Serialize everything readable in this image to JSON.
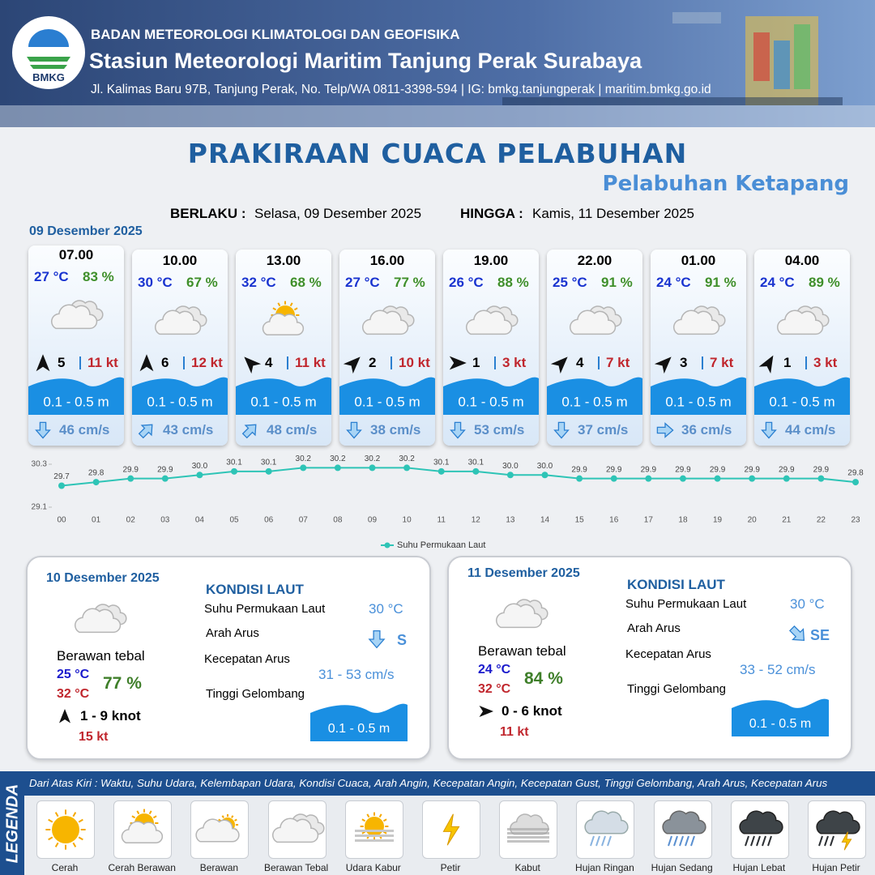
{
  "header": {
    "logo": "BMKG",
    "org": "BADAN METEOROLOGI KLIMATOLOGI DAN GEOFISIKA",
    "station": "Stasiun Meteorologi Maritim Tanjung Perak Surabaya",
    "address": "Jl. Kalimas Baru 97B, Tanjung Perak, No. Telp/WA 0811-3398-594 | IG: bmkg.tanjungperak | maritim.bmkg.go.id"
  },
  "title": "PRAKIRAAN CUACA PELABUHAN",
  "subtitle": "Pelabuhan Ketapang",
  "validity": {
    "from_label": "BERLAKU :",
    "from": "Selasa, 09 Desember 2025",
    "to_label": "HINGGA :",
    "to": "Kamis, 11 Desember 2025"
  },
  "today": {
    "date": "09 Desember 2025",
    "slots": [
      {
        "time": "07.00",
        "temp": "27 °C",
        "humidity": "83 %",
        "icon": "clouds",
        "wind_rotation": 0,
        "wind": "5",
        "gust": "11 kt",
        "wave": "0.1 - 0.5 m",
        "current_rotation": 180,
        "current": "46 cm/s"
      },
      {
        "time": "10.00",
        "temp": "30 °C",
        "humidity": "67 %",
        "icon": "clouds",
        "wind_rotation": 0,
        "wind": "6",
        "gust": "12 kt",
        "wave": "0.1 - 0.5 m",
        "current_rotation": 45,
        "current": "43 cm/s"
      },
      {
        "time": "13.00",
        "temp": "32 °C",
        "humidity": "68 %",
        "icon": "sun-cloud",
        "wind_rotation": -45,
        "wind": "4",
        "gust": "11 kt",
        "wave": "0.1 - 0.5 m",
        "current_rotation": 45,
        "current": "48 cm/s"
      },
      {
        "time": "16.00",
        "temp": "27 °C",
        "humidity": "77 %",
        "icon": "clouds",
        "wind_rotation": 45,
        "wind": "2",
        "gust": "10 kt",
        "wave": "0.1 - 0.5 m",
        "current_rotation": 180,
        "current": "38 cm/s"
      },
      {
        "time": "19.00",
        "temp": "26 °C",
        "humidity": "88 %",
        "icon": "clouds",
        "wind_rotation": 90,
        "wind": "1",
        "gust": "3 kt",
        "wave": "0.1 - 0.5 m",
        "current_rotation": 180,
        "current": "53 cm/s"
      },
      {
        "time": "22.00",
        "temp": "25 °C",
        "humidity": "91 %",
        "icon": "clouds",
        "wind_rotation": 45,
        "wind": "4",
        "gust": "7 kt",
        "wave": "0.1 - 0.5 m",
        "current_rotation": 180,
        "current": "37 cm/s"
      },
      {
        "time": "01.00",
        "temp": "24 °C",
        "humidity": "91 %",
        "icon": "clouds",
        "wind_rotation": 45,
        "wind": "3",
        "gust": "7 kt",
        "wave": "0.1 - 0.5 m",
        "current_rotation": 90,
        "current": "36 cm/s"
      },
      {
        "time": "04.00",
        "temp": "24 °C",
        "humidity": "89 %",
        "icon": "clouds",
        "wind_rotation": 30,
        "wind": "1",
        "gust": "3 kt",
        "wave": "0.1 - 0.5 m",
        "current_rotation": 180,
        "current": "44 cm/s"
      }
    ]
  },
  "chart_data": {
    "type": "line",
    "categories": [
      "00",
      "01",
      "02",
      "03",
      "04",
      "05",
      "06",
      "07",
      "08",
      "09",
      "10",
      "11",
      "12",
      "13",
      "14",
      "15",
      "16",
      "17",
      "18",
      "19",
      "20",
      "21",
      "22",
      "23"
    ],
    "series": [
      {
        "name": "Suhu Permukaan Laut",
        "color": "#2ec4b6",
        "values": [
          29.7,
          29.8,
          29.9,
          29.9,
          30.0,
          30.1,
          30.1,
          30.2,
          30.2,
          30.2,
          30.2,
          30.1,
          30.1,
          30.0,
          30.0,
          29.9,
          29.9,
          29.9,
          29.9,
          29.9,
          29.9,
          29.9,
          29.9,
          29.8
        ],
        "value_labels": [
          "29.7",
          "29.8",
          "29.9",
          "29.9",
          "30.0",
          "30.1",
          "30.1",
          "30.2",
          "30.2",
          "30.2",
          "30.2",
          "30.1",
          "30.1",
          "30.0",
          "30.0",
          "29.9",
          "29.9",
          "29.9",
          "29.9",
          "29.9",
          "29.9",
          "29.9",
          "29.9",
          "29.8"
        ]
      }
    ],
    "ylim": [
      29.1,
      30.3
    ],
    "yticks": [
      29.1,
      30.3
    ]
  },
  "days": [
    {
      "date": "10 Desember 2025",
      "condition": "Berawan tebal",
      "icon": "clouds",
      "temp_min": "25 °C",
      "temp_max": "32 °C",
      "humidity": "77 %",
      "wind_rotation": 0,
      "wind": "1 - 9 knot",
      "gust": "15 kt",
      "sea": {
        "heading": "KONDISI LAUT",
        "sst_label": "Suhu Permukaan Laut",
        "sst": "30 °C",
        "current_dir_label": "Arah Arus",
        "current_rotation": 180,
        "current_dir": "S",
        "current_speed_label": "Kecepatan Arus",
        "current_speed": "31 - 53 cm/s",
        "wave_label": "Tinggi Gelombang",
        "wave": "0.1 - 0.5 m"
      }
    },
    {
      "date": "11 Desember 2025",
      "condition": "Berawan tebal",
      "icon": "clouds",
      "temp_min": "24 °C",
      "temp_max": "32 °C",
      "humidity": "84 %",
      "wind_rotation": 90,
      "wind": "0 - 6 knot",
      "gust": "11 kt",
      "sea": {
        "heading": "KONDISI LAUT",
        "sst_label": "Suhu Permukaan Laut",
        "sst": "30 °C",
        "current_dir_label": "Arah Arus",
        "current_rotation": 135,
        "current_dir": "SE",
        "current_speed_label": "Kecepatan Arus",
        "current_speed": "33 - 52 cm/s",
        "wave_label": "Tinggi Gelombang",
        "wave": "0.1 - 0.5 m"
      }
    }
  ],
  "legend": {
    "title": "LEGENDA",
    "description": "Dari Atas Kiri : Waktu, Suhu Udara, Kelembapan Udara, Kondisi Cuaca, Arah Angin, Kecepatan Angin, Kecepatan Gust, Tinggi Gelombang, Arah Arus, Kecepatan Arus",
    "items": [
      {
        "name": "Cerah",
        "icon": "sun"
      },
      {
        "name": "Cerah Berawan",
        "icon": "sun-cloud"
      },
      {
        "name": "Berawan",
        "icon": "cloud-sun"
      },
      {
        "name": "Berawan Tebal",
        "icon": "clouds"
      },
      {
        "name": "Udara Kabur",
        "icon": "haze"
      },
      {
        "name": "Petir",
        "icon": "bolt"
      },
      {
        "name": "Kabut",
        "icon": "fog"
      },
      {
        "name": "Hujan Ringan",
        "icon": "rain-light"
      },
      {
        "name": "Hujan Sedang",
        "icon": "rain-mid"
      },
      {
        "name": "Hujan Lebat",
        "icon": "rain-heavy"
      },
      {
        "name": "Hujan Petir",
        "icon": "storm"
      }
    ]
  }
}
